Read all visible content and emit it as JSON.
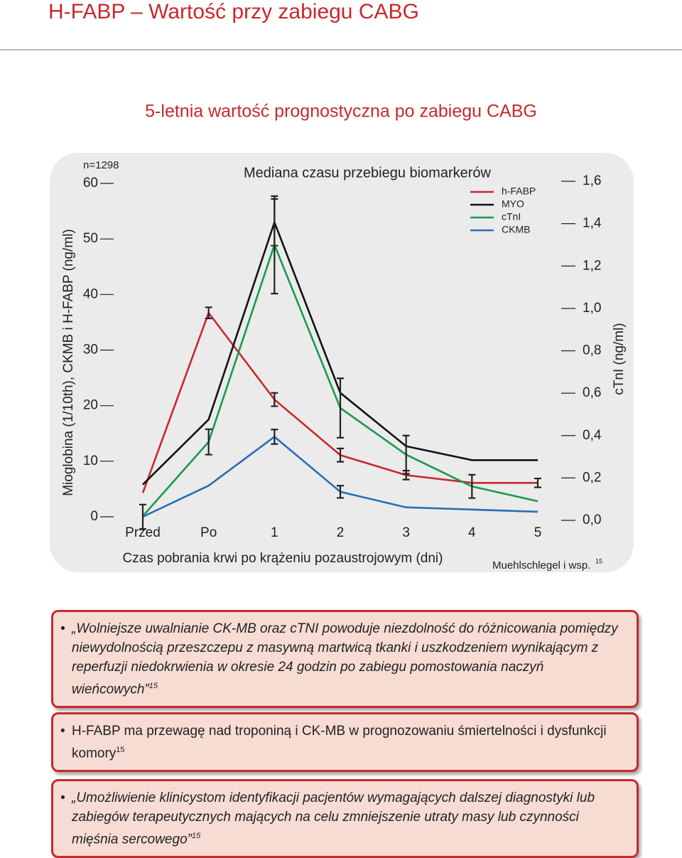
{
  "header": {
    "title": "H-FABP – Wartość przy zabiegu CABG",
    "subtitle": "5-letnia wartość prognostyczna po zabiegu CABG"
  },
  "chart_data": {
    "type": "line",
    "title": "Mediana czasu przebiegu biomarkerów",
    "sample_label": "n=1298",
    "ylabel": "Mioglobina (1/10th), CKMB i H-FABP (ng/ml)",
    "y2label": "cTnI (ng/ml)",
    "xlabel": "Czas pobrania krwi po krążeniu pozaustrojowym (dni)",
    "source": "Muehlschlegel i wsp.",
    "source_ref": "15",
    "categories": [
      "Przed",
      "Po",
      "1",
      "2",
      "3",
      "4",
      "5"
    ],
    "ylim": [
      0,
      60
    ],
    "yticks": [
      0,
      10,
      20,
      30,
      40,
      50,
      60
    ],
    "y2lim": [
      0,
      1.6
    ],
    "y2ticks": [
      {
        "value": 0,
        "label": "0,0"
      },
      {
        "value": 0.2,
        "label": "0,2"
      },
      {
        "value": 0.4,
        "label": "0,4"
      },
      {
        "value": 0.6,
        "label": "0,6"
      },
      {
        "value": 0.8,
        "label": "0,8"
      },
      {
        "value": 1.0,
        "label": "1,0"
      },
      {
        "value": 1.2,
        "label": "1,2"
      },
      {
        "value": 1.4,
        "label": "1,4"
      },
      {
        "value": 1.6,
        "label": "1,6"
      }
    ],
    "legend": "top-right",
    "series": [
      {
        "name": "h-FABP",
        "color": "#c8282d",
        "values": [
          4.3,
          36.7,
          21.1,
          11.1,
          7.5,
          6.1,
          6.1
        ],
        "errors": [
          null,
          1,
          1.2,
          1.2,
          0.8,
          null,
          0.8
        ]
      },
      {
        "name": "MYO",
        "color": "#111111",
        "values": [
          5.8,
          17.5,
          53,
          22.3,
          12.7,
          10.2,
          10.2
        ],
        "errors": [
          null,
          null,
          4.2,
          null,
          null,
          null,
          null
        ]
      },
      {
        "name": "cTnI",
        "color": "#1a9a50",
        "axis": "y2",
        "values": [
          0.02,
          0.37,
          1.3,
          0.53,
          0.31,
          0.16,
          0.09
        ],
        "errors": [
          null,
          0.06,
          0.23,
          0.14,
          0.09,
          0.055,
          null
        ]
      },
      {
        "name": "CKMB",
        "color": "#2a6db5",
        "values": [
          0,
          5.6,
          14.4,
          4.5,
          1.7,
          1.3,
          0.9
        ],
        "errors": [
          2.2,
          null,
          1.3,
          1.1,
          null,
          null,
          null
        ]
      }
    ]
  },
  "bullets": [
    {
      "text": "„Wolniejsze uwalnianie CK-MB oraz cTNI powoduje niezdolność do różnicowania pomiędzy niewydolnością przeszczepu z masywną martwicą tkanki i uszkodzeniem wynikającym z reperfuzji niedokrwienia w okresie 24 godzin po zabiegu pomostowania naczyń wieńcowych”",
      "ref": "15",
      "italic": true
    },
    {
      "text": "H-FABP ma przewagę nad troponiną i CK-MB w prognozowaniu śmiertelności i dysfunkcji komory",
      "ref": "15",
      "italic": false
    },
    {
      "text": "„Umożliwienie klinicystom identyfikacji pacjentów wymagających dalszej diagnostyki lub zabiegów terapeutycznych mających na celu zmniejszenie utraty masy lub czynności mięśnia sercowego”",
      "ref": "15",
      "italic": true
    }
  ]
}
